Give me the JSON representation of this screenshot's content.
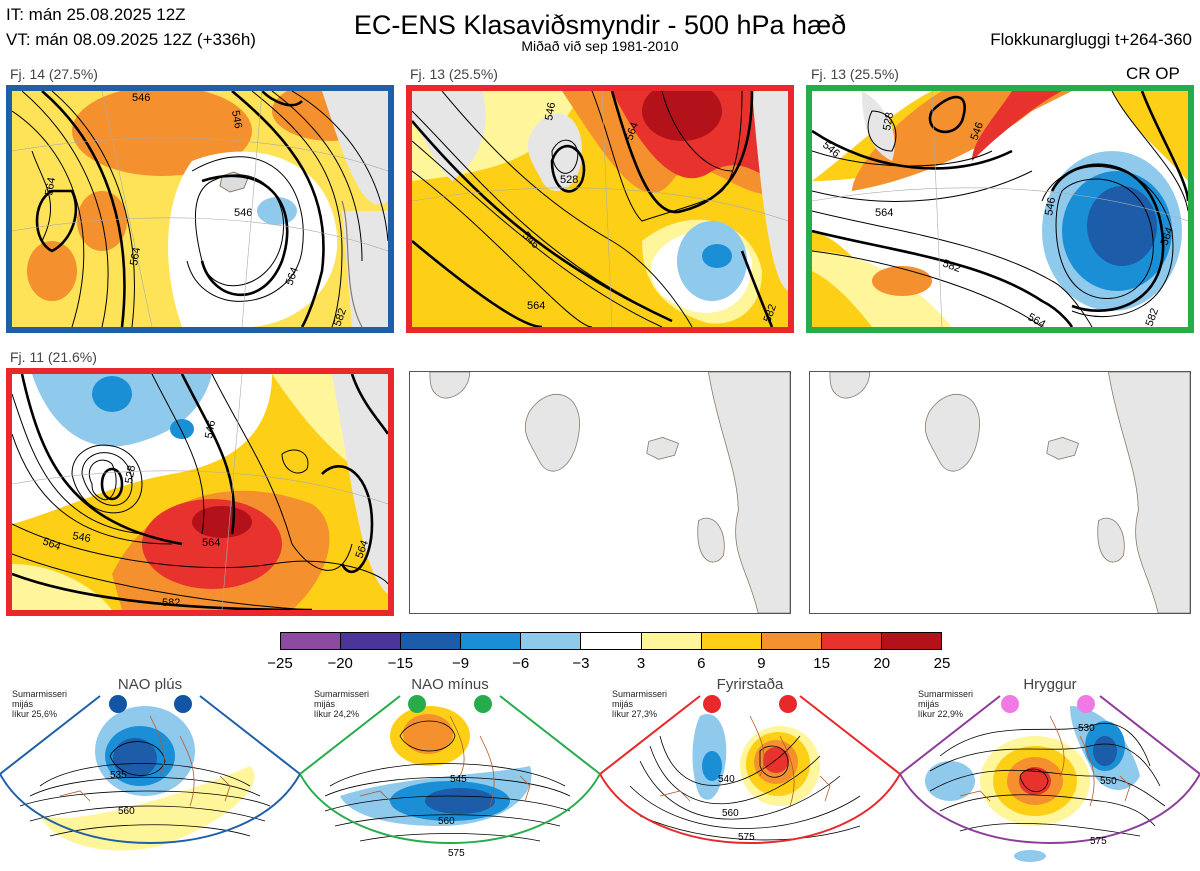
{
  "header": {
    "init_time": "IT: mán 25.08.2025 12Z",
    "valid_time": "VT: mán 08.09.2025 12Z  (+336h)",
    "title": "EC-ENS Klasaviðsmyndir - 500 hPa hæð",
    "subtitle": "Miðað við sep 1981-2010",
    "window": "Flokkunargluggi t+264-360",
    "cr_op": "CR OP"
  },
  "panels": [
    {
      "label": "Fj. 14 (27.5%)",
      "border": "#1f5fa8",
      "contours": [
        "564",
        "546",
        "564",
        "564",
        "546",
        "546",
        "582"
      ]
    },
    {
      "label": "Fj. 13 (25.5%)",
      "border": "#e8282a",
      "contours": [
        "546",
        "528",
        "546",
        "564",
        "564",
        "582"
      ]
    },
    {
      "label": "Fj. 13 (25.5%)",
      "border": "#27ac4b",
      "contours": [
        "546",
        "528",
        "546",
        "564",
        "546",
        "564",
        "582",
        "564",
        "582"
      ]
    },
    {
      "label": "Fj. 11 (21.6%)",
      "border": "#e8282a",
      "contours": [
        "528",
        "546",
        "546",
        "564",
        "564",
        "582",
        "564"
      ]
    }
  ],
  "colorbar": {
    "colors": [
      "#8e4aa0",
      "#4a3599",
      "#1c5ca8",
      "#1b8fd6",
      "#8fc9ec",
      "#ffffff",
      "#fff59b",
      "#fdd017",
      "#f4902e",
      "#e8322d",
      "#b3121a"
    ],
    "ticks": [
      "−25",
      "−20",
      "−15",
      "−9",
      "−6",
      "−3",
      "3",
      "6",
      "9",
      "15",
      "20",
      "25"
    ]
  },
  "regimes": [
    {
      "name": "NAO plús",
      "note": [
        "Sumarmisseri",
        "mijás",
        "líkur 25,6%"
      ],
      "color": "#1f5fa8",
      "dot": "#1255a4",
      "labels": [
        "535",
        "560"
      ]
    },
    {
      "name": "NAO mínus",
      "note": [
        "Sumarmisseri",
        "mijás",
        "líkur 24,2%"
      ],
      "color": "#27ac4b",
      "dot": "#27ac4b",
      "labels": [
        "545",
        "560",
        "575"
      ]
    },
    {
      "name": "Fyrirstaða",
      "note": [
        "Sumarmisseri",
        "mijás",
        "líkur 27,3%"
      ],
      "color": "#e8282a",
      "dot": "#e8282a",
      "labels": [
        "540",
        "560",
        "575"
      ]
    },
    {
      "name": "Hryggur",
      "note": [
        "Sumarmisseri",
        "mijás",
        "líkur 22,9%"
      ],
      "color": "#8c3c9a",
      "dot": "#ef7ae5",
      "labels": [
        "530",
        "550",
        "575"
      ]
    }
  ]
}
